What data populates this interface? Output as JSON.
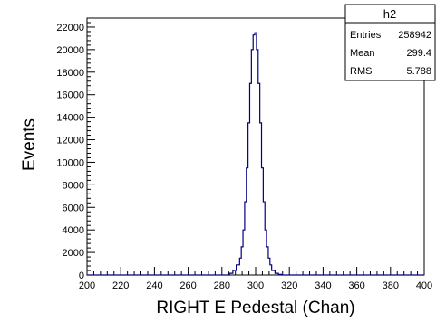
{
  "chart_data": {
    "type": "line",
    "title": "",
    "xlabel": "RIGHT E Pedestal (Chan)",
    "ylabel": "Events",
    "xlim": [
      200,
      400
    ],
    "ylim": [
      0,
      22800
    ],
    "x_ticks": [
      "200",
      "220",
      "240",
      "260",
      "280",
      "300",
      "320",
      "340",
      "360",
      "380",
      "400"
    ],
    "y_ticks": [
      "0",
      "2000",
      "4000",
      "6000",
      "8000",
      "10000",
      "12000",
      "14000",
      "16000",
      "18000",
      "20000",
      "22000"
    ],
    "grid": false,
    "series": [
      {
        "color": "#00007f",
        "x": [
          283,
          285,
          287,
          289,
          291,
          292,
          293,
          294,
          295,
          296,
          297,
          298,
          299,
          300,
          301,
          302,
          303,
          304,
          305,
          306,
          307,
          308,
          309,
          310,
          312,
          314,
          316
        ],
        "values": [
          0,
          150,
          400,
          900,
          1500,
          2500,
          4000,
          6500,
          9500,
          13500,
          17000,
          20000,
          21300,
          21500,
          20000,
          17000,
          13500,
          9500,
          6500,
          4000,
          2500,
          1500,
          900,
          400,
          150,
          50,
          0
        ]
      }
    ]
  },
  "stats_box": {
    "title": "h2",
    "rows": [
      {
        "label": "Entries",
        "value": "258942"
      },
      {
        "label": "Mean",
        "value": "299.4"
      },
      {
        "label": "RMS",
        "value": "5.788"
      }
    ]
  }
}
